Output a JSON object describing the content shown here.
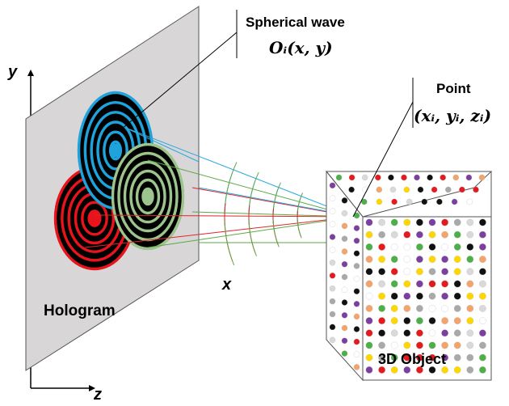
{
  "labels": {
    "y_axis": "y",
    "x_axis": "x",
    "z_axis": "z",
    "hologram": "Hologram",
    "wave_title": "Spherical wave",
    "wave_formula": "Oᵢ(x, y)",
    "point_title": "Point",
    "point_formula": "(xᵢ, yᵢ, zᵢ)",
    "object": "3D Object"
  },
  "colors": {
    "plate": "#d9d6d8",
    "blue": "#1ea3dc",
    "green": "#9cc48c",
    "red": "#e8141c",
    "ray_blue": "#2aa7e0",
    "ray_green": "#5aa845",
    "ray_red": "#e0262a"
  },
  "dot_palette": [
    "#e41a1c",
    "#4daf4a",
    "#ffd700",
    "#111111",
    "#7b3fa0",
    "#d9d9d9",
    "#f4a46a",
    "#a9a9a9",
    "#ffffff"
  ]
}
